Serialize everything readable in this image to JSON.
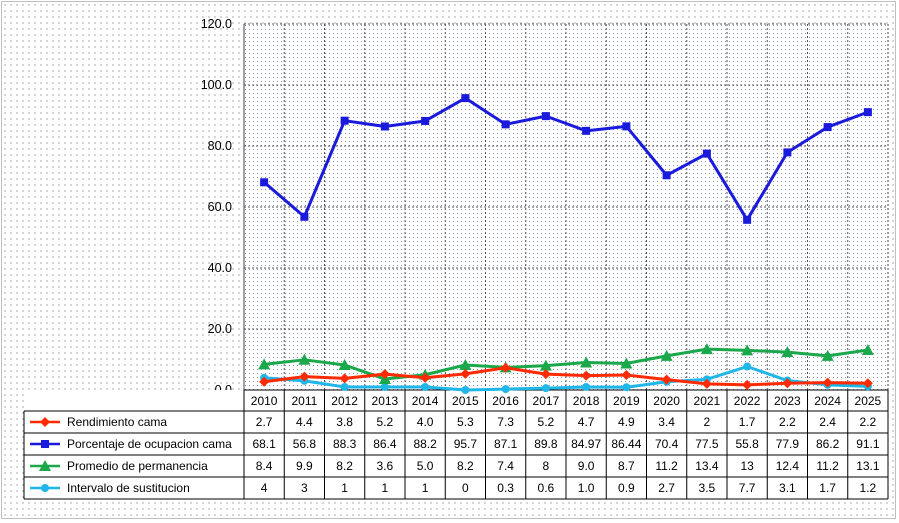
{
  "chart_data": {
    "type": "line",
    "categories": [
      "2010",
      "2011",
      "2012",
      "2013",
      "2014",
      "2015",
      "2016",
      "2017",
      "2018",
      "2019",
      "2020",
      "2021",
      "2022",
      "2023",
      "2024",
      "2025"
    ],
    "ylim": [
      0,
      120
    ],
    "yticks": [
      "0.0",
      "20.0",
      "40.0",
      "60.0",
      "80.0",
      "100.0",
      "120.0"
    ],
    "grid": true,
    "legend": "data-table-left",
    "series": [
      {
        "name": "Rendimiento cama",
        "color": "#ff2a00",
        "marker": "diamond",
        "values": [
          2.7,
          4.4,
          3.8,
          5.2,
          4.0,
          5.3,
          7.3,
          5.2,
          4.7,
          4.9,
          3.4,
          2,
          1.7,
          2.2,
          2.4,
          2.2
        ],
        "labels": [
          "2.7",
          "4.4",
          "3.8",
          "5.2",
          "4.0",
          "5.3",
          "7.3",
          "5.2",
          "4.7",
          "4.9",
          "3.4",
          "2",
          "1.7",
          "2.2",
          "2.4",
          "2.2"
        ]
      },
      {
        "name": "Porcentaje de ocupacion cama",
        "color": "#1a1adc",
        "marker": "square",
        "values": [
          68.1,
          56.8,
          88.3,
          86.4,
          88.2,
          95.7,
          87.1,
          89.8,
          84.97,
          86.44,
          70.4,
          77.5,
          55.8,
          77.9,
          86.2,
          91.1
        ],
        "labels": [
          "68.1",
          "56.8",
          "88.3",
          "86.4",
          "88.2",
          "95.7",
          "87.1",
          "89.8",
          "84.97",
          "86.44",
          "70.4",
          "77.5",
          "55.8",
          "77.9",
          "86.2",
          "91.1"
        ]
      },
      {
        "name": "Promedio de permanencia",
        "color": "#1aa84a",
        "marker": "triangle",
        "values": [
          8.4,
          9.9,
          8.2,
          3.6,
          5.0,
          8.2,
          7.4,
          8,
          9.0,
          8.7,
          11.2,
          13.4,
          13,
          12.4,
          11.2,
          13.1
        ],
        "labels": [
          "8.4",
          "9.9",
          "8.2",
          "3.6",
          "5.0",
          "8.2",
          "7.4",
          "8",
          "9.0",
          "8.7",
          "11.2",
          "13.4",
          "13",
          "12.4",
          "11.2",
          "13.1"
        ]
      },
      {
        "name": "Intervalo de sustitucion",
        "color": "#1fb6e8",
        "marker": "circle",
        "values": [
          4,
          3,
          1,
          1,
          1,
          0,
          0.3,
          0.6,
          1.0,
          0.9,
          2.7,
          3.5,
          7.7,
          3.1,
          1.7,
          1.2
        ],
        "labels": [
          "4",
          "3",
          "1",
          "1",
          "1",
          "0",
          "0.3",
          "0.6",
          "1.0",
          "0.9",
          "2.7",
          "3.5",
          "7.7",
          "3.1",
          "1.7",
          "1.2"
        ]
      }
    ]
  }
}
